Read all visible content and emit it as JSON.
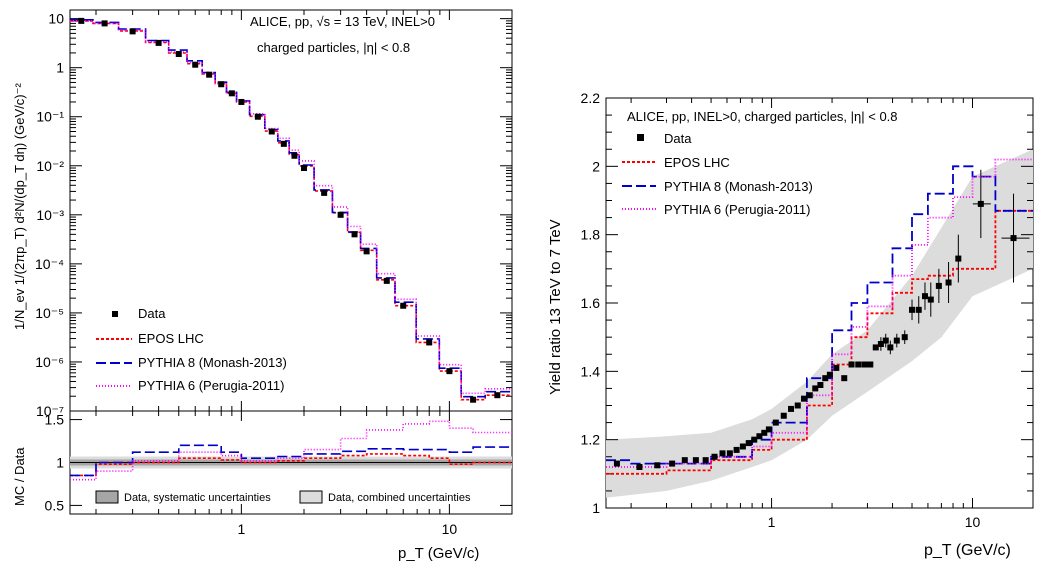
{
  "colors": {
    "data": "#000000",
    "epos": "#ff0000",
    "pythia8": "#0000cc",
    "pythia6": "#ff00ff",
    "band_combined": "#dcdcdc",
    "band_syst": "#a6a6a6"
  },
  "chart_data": [
    {
      "type": "line",
      "panel": "spectrum",
      "x_scale": "log",
      "y_scale": "log",
      "xlim": [
        0.15,
        20
      ],
      "ylim": [
        1e-07,
        15
      ],
      "annotation": [
        "ALICE, pp, √s = 13 TeV, INEL>0",
        "charged particles, |η| < 0.8"
      ],
      "ylabel": "1/N_ev 1/(2πp_T) d²N/(dp_T dη) (GeV/c)⁻²",
      "y_tick_labels": [
        "10",
        "1",
        "10⁻¹",
        "10⁻²",
        "10⁻³",
        "10⁻⁴",
        "10⁻⁵",
        "10⁻⁶",
        "10⁻⁷"
      ],
      "legend": [
        "Data",
        "EPOS LHC",
        "PYTHIA 8 (Monash-2013)",
        "PYTHIA 6 (Perugia-2011)"
      ],
      "legend_position": "bottom-left",
      "data_pt": [
        0.17,
        0.22,
        0.3,
        0.4,
        0.5,
        0.6,
        0.7,
        0.8,
        0.9,
        1.0,
        1.2,
        1.4,
        1.6,
        1.8,
        2.0,
        2.5,
        3.0,
        3.5,
        4.0,
        5.0,
        6.0,
        8.0,
        10.0,
        13.0,
        17.0
      ],
      "data_yield": [
        9.0,
        8.0,
        5.5,
        3.2,
        1.9,
        1.15,
        0.72,
        0.46,
        0.3,
        0.2,
        0.1,
        0.05,
        0.028,
        0.016,
        0.009,
        0.0028,
        0.001,
        0.0004,
        0.00018,
        4.5e-05,
        1.4e-05,
        2.5e-06,
        6.5e-07,
        1.7e-07,
        2.1e-07
      ]
    },
    {
      "type": "line",
      "panel": "mc-data-ratio",
      "x_scale": "log",
      "xlim": [
        0.15,
        20
      ],
      "ylim": [
        0.4,
        1.6
      ],
      "ylabel": "MC / Data",
      "xlabel": "p_T (GeV/c)",
      "x_tick_labels": [
        "1",
        "10"
      ],
      "y_tick_labels": [
        "0.5",
        "1",
        "1.5"
      ],
      "legend": [
        "Data, systematic uncertainties",
        "Data, combined uncertainties"
      ],
      "series": [
        {
          "name": "EPOS LHC",
          "x": [
            0.15,
            0.2,
            0.3,
            0.5,
            0.8,
            1.0,
            1.5,
            2.0,
            3.0,
            4.0,
            6.0,
            8.0,
            10.0,
            13.0,
            20.0
          ],
          "values": [
            0.85,
            0.98,
            1.0,
            1.05,
            1.03,
            1.0,
            1.02,
            1.05,
            1.08,
            1.1,
            1.08,
            1.05,
            0.98,
            1.0,
            1.05
          ]
        },
        {
          "name": "PYTHIA 8 (Monash-2013)",
          "x": [
            0.15,
            0.2,
            0.3,
            0.5,
            0.8,
            1.0,
            1.5,
            2.0,
            3.0,
            4.0,
            6.0,
            8.0,
            10.0,
            13.0,
            20.0
          ],
          "values": [
            0.85,
            1.0,
            1.12,
            1.2,
            1.12,
            1.05,
            1.07,
            1.1,
            1.13,
            1.16,
            1.15,
            1.15,
            1.12,
            1.18,
            1.18
          ]
        },
        {
          "name": "PYTHIA 6 (Perugia-2011)",
          "x": [
            0.15,
            0.2,
            0.3,
            0.5,
            0.8,
            1.0,
            1.5,
            2.0,
            3.0,
            4.0,
            6.0,
            8.0,
            10.0,
            13.0,
            20.0
          ],
          "values": [
            0.8,
            0.9,
            1.02,
            1.12,
            1.08,
            1.02,
            1.05,
            1.15,
            1.28,
            1.38,
            1.45,
            1.48,
            1.4,
            1.35,
            1.35
          ]
        }
      ]
    },
    {
      "type": "line",
      "panel": "yield-ratio",
      "x_scale": "log",
      "xlim": [
        0.15,
        20
      ],
      "ylim": [
        1.0,
        2.2
      ],
      "annotation": "ALICE, pp, INEL>0, charged particles, |η| < 0.8",
      "ylabel": "Yield ratio 13 TeV to 7 TeV",
      "xlabel": "p_T (GeV/c)",
      "x_tick_labels": [
        "1",
        "10"
      ],
      "y_tick_labels": [
        "1",
        "1.2",
        "1.4",
        "1.6",
        "1.8",
        "2",
        "2.2"
      ],
      "legend": [
        "Data",
        "EPOS LHC",
        "PYTHIA 8 (Monash-2013)",
        "PYTHIA 6 (Perugia-2011)"
      ],
      "legend_position": "top-left",
      "data": {
        "x": [
          0.17,
          0.22,
          0.27,
          0.32,
          0.37,
          0.42,
          0.47,
          0.52,
          0.57,
          0.62,
          0.67,
          0.72,
          0.77,
          0.82,
          0.87,
          0.92,
          0.97,
          1.05,
          1.15,
          1.25,
          1.35,
          1.45,
          1.55,
          1.65,
          1.75,
          1.85,
          1.95,
          2.1,
          2.3,
          2.5,
          2.7,
          2.9,
          3.1,
          3.3,
          3.5,
          3.7,
          3.9,
          4.2,
          4.6,
          5.0,
          5.4,
          5.8,
          6.2,
          6.8,
          7.6,
          8.5,
          11.0,
          16.0
        ],
        "y": [
          1.13,
          1.12,
          1.125,
          1.13,
          1.14,
          1.14,
          1.14,
          1.15,
          1.16,
          1.16,
          1.17,
          1.18,
          1.19,
          1.2,
          1.21,
          1.22,
          1.23,
          1.25,
          1.27,
          1.29,
          1.3,
          1.32,
          1.33,
          1.35,
          1.36,
          1.38,
          1.39,
          1.41,
          1.38,
          1.42,
          1.42,
          1.42,
          1.42,
          1.47,
          1.48,
          1.49,
          1.47,
          1.49,
          1.5,
          1.58,
          1.58,
          1.62,
          1.61,
          1.65,
          1.66,
          1.73,
          1.89,
          1.79
        ],
        "err": [
          0.01,
          0.01,
          0.01,
          0.01,
          0.01,
          0.01,
          0.01,
          0.01,
          0.01,
          0.01,
          0.01,
          0.01,
          0.01,
          0.01,
          0.01,
          0.01,
          0.01,
          0.01,
          0.01,
          0.01,
          0.01,
          0.01,
          0.01,
          0.01,
          0.01,
          0.01,
          0.01,
          0.01,
          0.01,
          0.01,
          0.01,
          0.01,
          0.01,
          0.01,
          0.02,
          0.02,
          0.02,
          0.02,
          0.02,
          0.03,
          0.04,
          0.04,
          0.05,
          0.05,
          0.06,
          0.07,
          0.1,
          0.13
        ]
      },
      "band": {
        "x": [
          0.15,
          0.3,
          0.5,
          0.8,
          1.0,
          1.5,
          2.0,
          3.0,
          5.0,
          7.0,
          10.0,
          20.0
        ],
        "low": [
          1.03,
          1.05,
          1.08,
          1.12,
          1.14,
          1.2,
          1.27,
          1.34,
          1.43,
          1.5,
          1.62,
          1.7
        ],
        "high": [
          1.2,
          1.21,
          1.22,
          1.26,
          1.29,
          1.37,
          1.45,
          1.52,
          1.68,
          1.82,
          1.97,
          2.05
        ]
      },
      "series": [
        {
          "name": "EPOS LHC",
          "x": [
            0.15,
            0.2,
            0.3,
            0.5,
            0.8,
            1.0,
            1.5,
            2.0,
            2.5,
            3.0,
            4.0,
            5.0,
            6.0,
            8.0,
            10.0,
            13.0,
            20.0
          ],
          "values": [
            1.1,
            1.1,
            1.11,
            1.14,
            1.17,
            1.2,
            1.3,
            1.42,
            1.5,
            1.57,
            1.63,
            1.67,
            1.68,
            1.7,
            1.7,
            1.87,
            1.87
          ]
        },
        {
          "name": "PYTHIA 8 (Monash-2013)",
          "x": [
            0.15,
            0.2,
            0.3,
            0.5,
            0.8,
            1.0,
            1.5,
            2.0,
            2.5,
            3.0,
            4.0,
            5.0,
            6.0,
            8.0,
            10.0,
            13.0,
            20.0
          ],
          "values": [
            1.14,
            1.13,
            1.13,
            1.15,
            1.2,
            1.25,
            1.38,
            1.52,
            1.6,
            1.66,
            1.76,
            1.86,
            1.92,
            2.0,
            1.97,
            1.87,
            1.87
          ]
        },
        {
          "name": "PYTHIA 6 (Perugia-2011)",
          "x": [
            0.15,
            0.2,
            0.3,
            0.5,
            0.8,
            1.0,
            1.5,
            2.0,
            2.5,
            3.0,
            4.0,
            5.0,
            6.0,
            8.0,
            10.0,
            13.0,
            20.0
          ],
          "values": [
            1.12,
            1.12,
            1.13,
            1.15,
            1.18,
            1.22,
            1.33,
            1.45,
            1.53,
            1.59,
            1.68,
            1.77,
            1.85,
            1.91,
            1.97,
            2.02,
            2.02
          ]
        }
      ]
    }
  ]
}
